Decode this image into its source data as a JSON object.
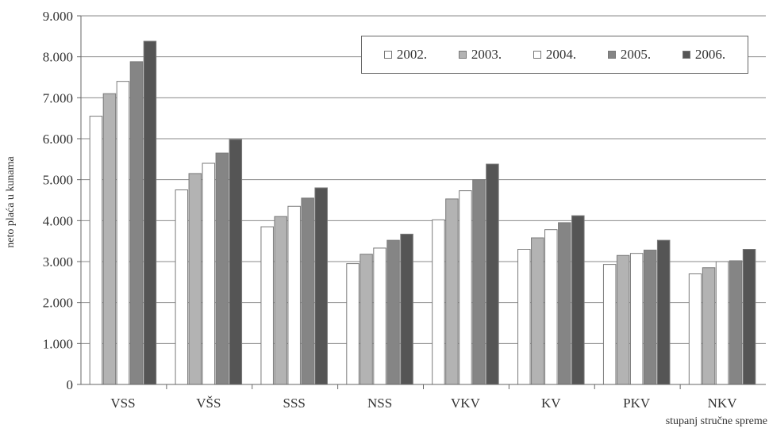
{
  "chart_data": {
    "type": "bar",
    "ylabel": "neto plaća u kunama",
    "xlabel": "stupanj stručne spreme",
    "categories": [
      "VSS",
      "VŠS",
      "SSS",
      "NSS",
      "VKV",
      "KV",
      "PKV",
      "NKV"
    ],
    "yticks": [
      "0",
      "1.000",
      "2.000",
      "3.000",
      "4.000",
      "5.000",
      "6.000",
      "7.000",
      "8.000",
      "9.000"
    ],
    "ylim": [
      0,
      9000
    ],
    "grid": true,
    "legend_position": "top-right",
    "series": [
      {
        "name": "2002.",
        "color": "#ffffff",
        "values": [
          6550,
          4750,
          3850,
          2950,
          4020,
          3300,
          2930,
          2700
        ]
      },
      {
        "name": "2003.",
        "color": "#b3b3b3",
        "values": [
          7100,
          5150,
          4100,
          3180,
          4530,
          3580,
          3150,
          2850
        ]
      },
      {
        "name": "2004.",
        "color": "#ffffff",
        "values": [
          7400,
          5400,
          4350,
          3330,
          4730,
          3780,
          3200,
          3000
        ]
      },
      {
        "name": "2005.",
        "color": "#858585",
        "values": [
          7880,
          5650,
          4550,
          3520,
          5000,
          3950,
          3280,
          3020
        ]
      },
      {
        "name": "2006.",
        "color": "#555555",
        "values": [
          8380,
          5980,
          4800,
          3670,
          5380,
          4120,
          3520,
          3300
        ]
      }
    ]
  }
}
